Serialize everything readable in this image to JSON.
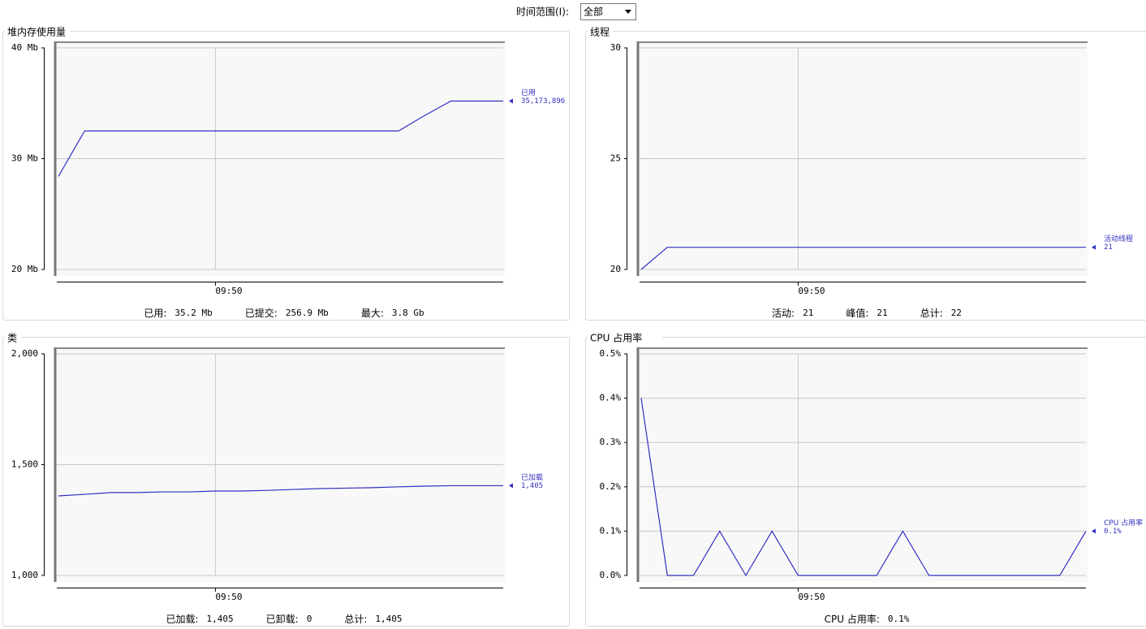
{
  "toolbar": {
    "label": "时间范围(I):",
    "selected": "全部"
  },
  "chart_data": [
    {
      "type": "line",
      "title": "堆内存使用量",
      "categories": [
        null,
        null,
        null,
        null,
        null,
        null,
        "09:50",
        null,
        null,
        null,
        null,
        null,
        null,
        null,
        null,
        null,
        null,
        null
      ],
      "series": [
        {
          "name": "已用",
          "color": "#3030c0",
          "current": "35,173,896",
          "values": [
            28.4,
            32.5,
            32.5,
            32.5,
            32.5,
            32.5,
            32.5,
            32.5,
            32.5,
            32.5,
            32.5,
            32.5,
            32.5,
            32.5,
            33.9,
            35.2,
            35.2,
            35.2
          ]
        }
      ],
      "ylim": [
        20,
        40
      ],
      "yticks": [
        {
          "value": 20,
          "label": "20 Mb"
        },
        {
          "value": 30,
          "label": "30 Mb"
        },
        {
          "value": 40,
          "label": "40 Mb"
        }
      ],
      "grid": true,
      "footer": [
        {
          "label": "已用:",
          "value": "35.2  Mb"
        },
        {
          "label": "已提交:",
          "value": "256.9  Mb"
        },
        {
          "label": "最大:",
          "value": "3.8  Gb"
        }
      ]
    },
    {
      "type": "line",
      "title": "线程",
      "categories": [
        null,
        null,
        null,
        null,
        null,
        null,
        "09:50",
        null,
        null,
        null,
        null,
        null,
        null,
        null,
        null,
        null,
        null,
        null
      ],
      "series": [
        {
          "name": "活动线程",
          "color": "#3030c0",
          "current": "21",
          "values": [
            20,
            21,
            21,
            21,
            21,
            21,
            21,
            21,
            21,
            21,
            21,
            21,
            21,
            21,
            21,
            21,
            21,
            21
          ]
        }
      ],
      "ylim": [
        20,
        30
      ],
      "yticks": [
        20,
        25,
        30
      ],
      "grid": true,
      "footer": [
        {
          "label": "活动:",
          "value": "21"
        },
        {
          "label": "峰值:",
          "value": "21"
        },
        {
          "label": "总计:",
          "value": "22"
        }
      ]
    },
    {
      "type": "line",
      "title": "类",
      "categories": [
        null,
        null,
        null,
        null,
        null,
        null,
        "09:50",
        null,
        null,
        null,
        null,
        null,
        null,
        null,
        null,
        null,
        null,
        null
      ],
      "series": [
        {
          "name": "已加载",
          "color": "#3030c0",
          "current": "1,405",
          "values": [
            1359,
            1366,
            1374,
            1374,
            1377,
            1377,
            1381,
            1381,
            1384,
            1388,
            1392,
            1394,
            1396,
            1400,
            1403,
            1405,
            1405,
            1405
          ]
        }
      ],
      "ylim": [
        1000,
        2000
      ],
      "yticks": [
        {
          "value": 1000,
          "label": "1,000"
        },
        {
          "value": 1500,
          "label": "1,500"
        },
        {
          "value": 2000,
          "label": "2,000"
        }
      ],
      "grid": true,
      "footer": [
        {
          "label": "已加载:",
          "value": "1,405"
        },
        {
          "label": "已卸载:",
          "value": "0"
        },
        {
          "label": "总计:",
          "value": "1,405"
        }
      ]
    },
    {
      "type": "line",
      "title": "CPU 占用率",
      "categories": [
        null,
        null,
        null,
        null,
        null,
        null,
        "09:50",
        null,
        null,
        null,
        null,
        null,
        null,
        null,
        null,
        null,
        null,
        null
      ],
      "series": [
        {
          "name": "CPU 占用率",
          "color": "#3030c0",
          "current": "0.1%",
          "values": [
            0.4,
            0,
            0,
            0.1,
            0,
            0.1,
            0,
            0,
            0,
            0,
            0.1,
            0,
            0,
            0,
            0,
            0,
            0,
            0.1
          ]
        }
      ],
      "ylim": [
        0,
        0.5
      ],
      "yticks": [
        {
          "value": 0,
          "label": "0.0%"
        },
        {
          "value": 0.1,
          "label": "0.1%"
        },
        {
          "value": 0.2,
          "label": "0.2%"
        },
        {
          "value": 0.3,
          "label": "0.3%"
        },
        {
          "value": 0.4,
          "label": "0.4%"
        },
        {
          "value": 0.5,
          "label": "0.5%"
        }
      ],
      "grid": true,
      "footer": [
        {
          "label": "CPU 占用率:",
          "value": "0.1%"
        }
      ]
    }
  ]
}
